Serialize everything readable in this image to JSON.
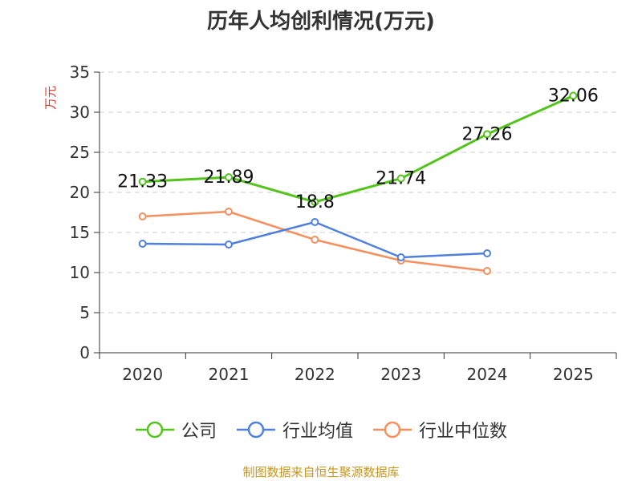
{
  "chart_data": {
    "type": "line",
    "title": "历年人均创利情况(万元)",
    "ylabel": "万元",
    "xlabel": "",
    "categories": [
      "2020",
      "2021",
      "2022",
      "2023",
      "2024",
      "2025"
    ],
    "ylim": [
      0,
      35
    ],
    "yticks": [
      0,
      5,
      10,
      15,
      20,
      25,
      30,
      35
    ],
    "grid": true,
    "legend_position": "bottom",
    "series": [
      {
        "name": "公司",
        "color": "#52c41a",
        "values": [
          21.33,
          21.89,
          18.8,
          21.74,
          27.26,
          32.06
        ],
        "labels": [
          "21.33",
          "21.89",
          "18.8",
          "21.74",
          "27.26",
          "32.06"
        ]
      },
      {
        "name": "行业均值",
        "color": "#4f7fdf",
        "values": [
          13.6,
          13.5,
          16.3,
          11.9,
          12.4,
          null
        ]
      },
      {
        "name": "行业中位数",
        "color": "#f58f5c",
        "values": [
          17.0,
          17.6,
          14.1,
          11.5,
          10.2,
          null
        ]
      }
    ]
  },
  "source_note": "制图数据来自恒生聚源数据库",
  "colors": {
    "title": "#333333",
    "axis": "#333333",
    "ylabel": "#e0302b",
    "grid": "#cccccc",
    "source": "#c8961e"
  }
}
